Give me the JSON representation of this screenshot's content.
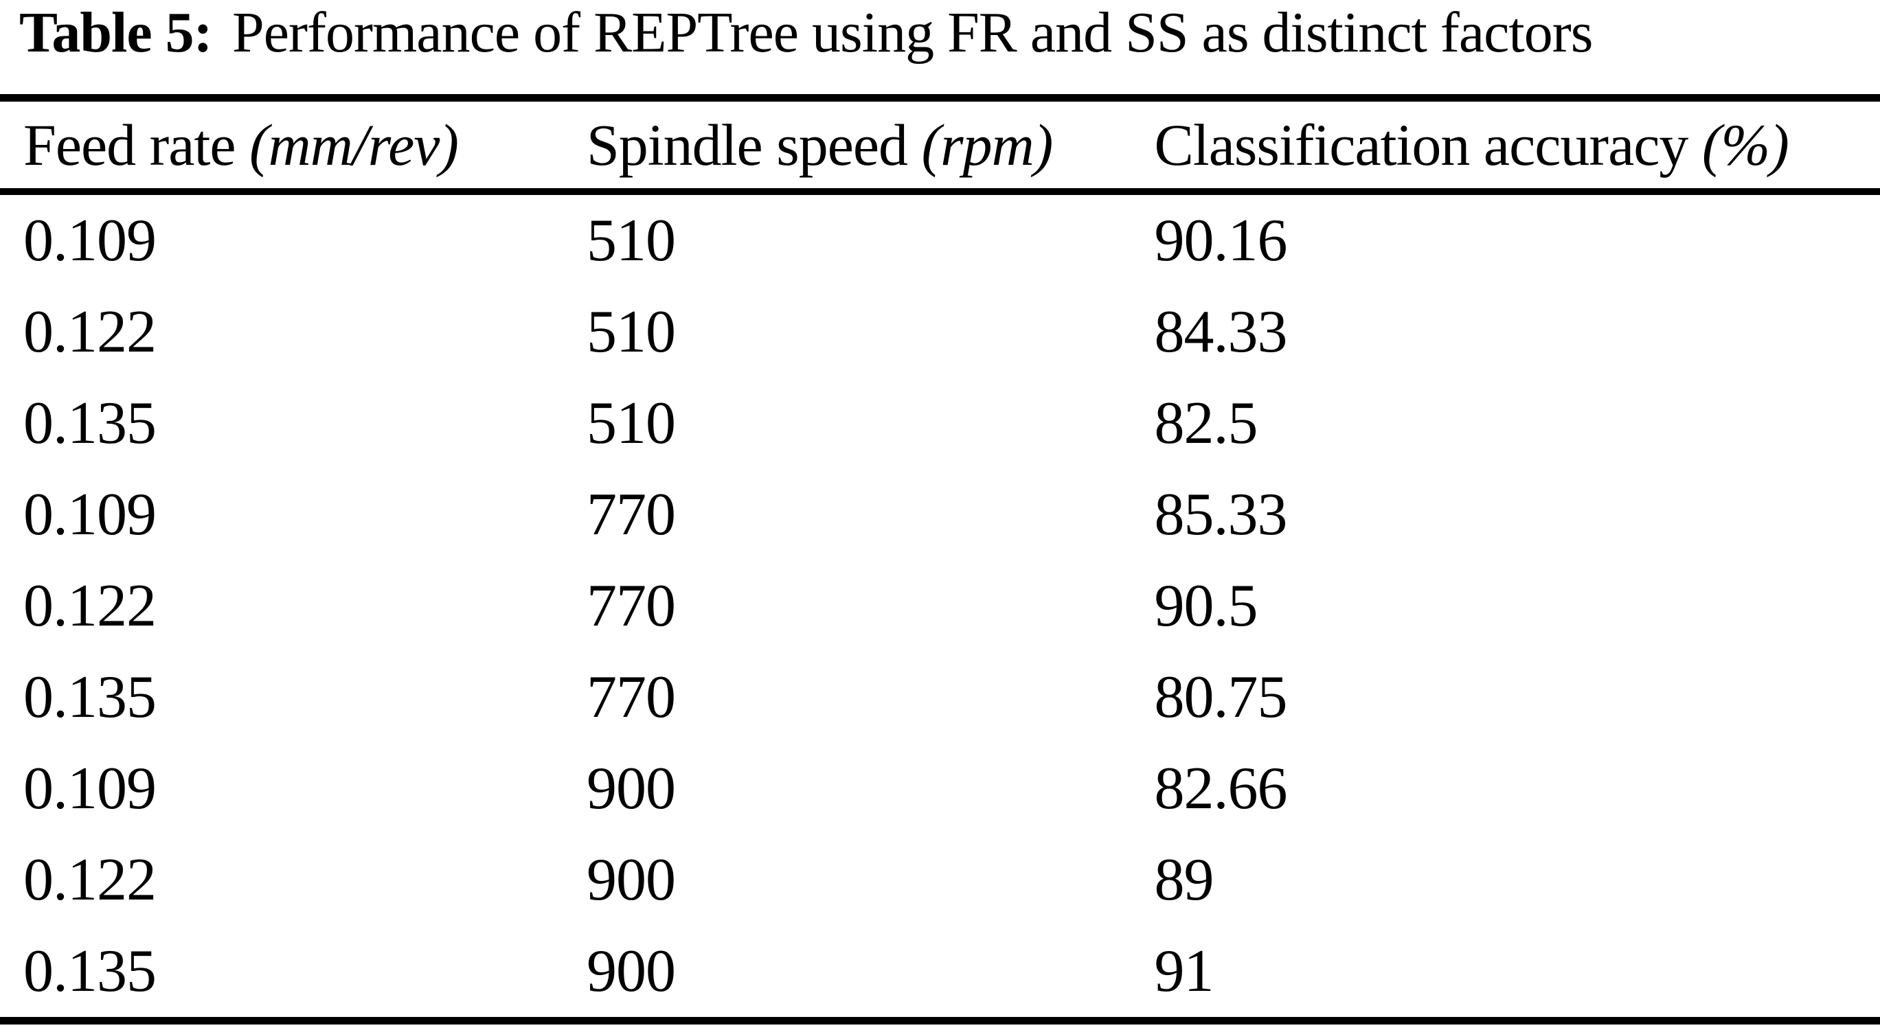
{
  "page": {
    "title": {
      "label": "Table 5:",
      "text": "Performance of REPTree using FR and SS as distinct factors"
    }
  },
  "table": {
    "columns": [
      {
        "name": "Feed rate",
        "unit": "(mm/rev)"
      },
      {
        "name": "Spindle speed",
        "unit": "(rpm)"
      },
      {
        "name": "Classification accuracy",
        "unit": "(%)"
      }
    ],
    "rows": [
      [
        "0.109",
        "510",
        "90.16"
      ],
      [
        "0.122",
        "510",
        "84.33"
      ],
      [
        "0.135",
        "510",
        "82.5"
      ],
      [
        "0.109",
        "770",
        "85.33"
      ],
      [
        "0.122",
        "770",
        "90.5"
      ],
      [
        "0.135",
        "770",
        "80.75"
      ],
      [
        "0.109",
        "900",
        "82.66"
      ],
      [
        "0.122",
        "900",
        "89"
      ],
      [
        "0.135",
        "900",
        "91"
      ]
    ]
  },
  "chart_data": {
    "type": "table",
    "title": "Table 5: Performance of REPTree using FR and SS as distinct factors",
    "columns": [
      "Feed rate (mm/rev)",
      "Spindle speed (rpm)",
      "Classification accuracy (%)"
    ],
    "rows": [
      [
        0.109,
        510,
        90.16
      ],
      [
        0.122,
        510,
        84.33
      ],
      [
        0.135,
        510,
        82.5
      ],
      [
        0.109,
        770,
        85.33
      ],
      [
        0.122,
        770,
        90.5
      ],
      [
        0.135,
        770,
        80.75
      ],
      [
        0.109,
        900,
        82.66
      ],
      [
        0.122,
        900,
        89
      ],
      [
        0.135,
        900,
        91
      ]
    ]
  }
}
